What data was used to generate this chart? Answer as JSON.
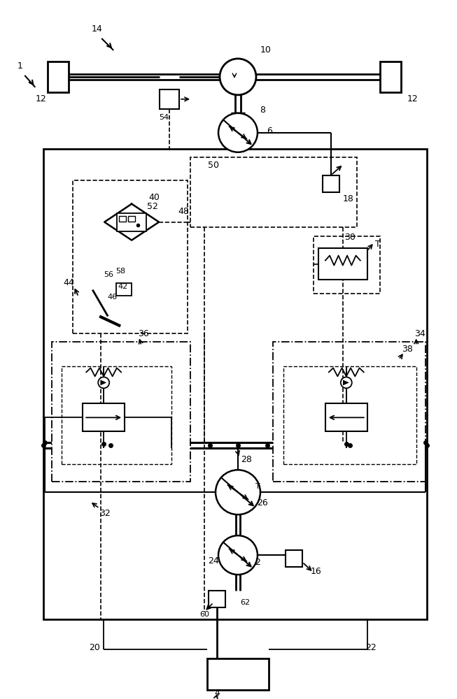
{
  "bg_color": "#ffffff",
  "line_color": "#000000",
  "fig_width": 6.53,
  "fig_height": 10.0
}
